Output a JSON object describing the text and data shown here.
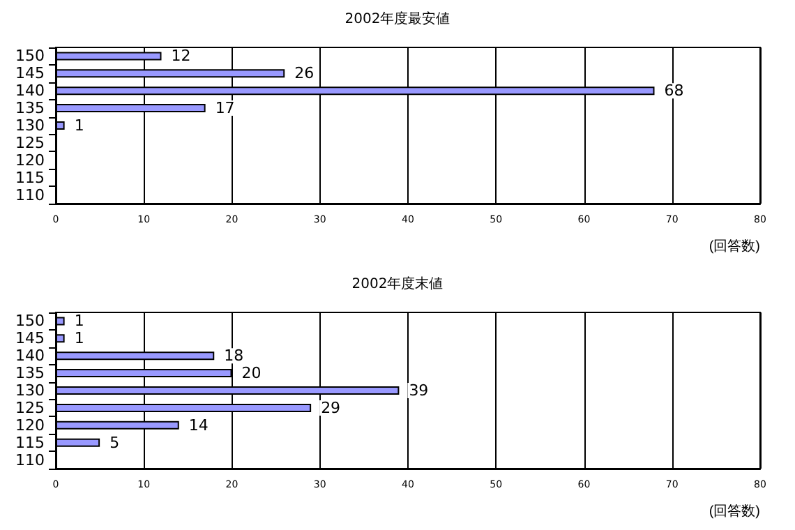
{
  "chart_data": [
    {
      "type": "bar",
      "title": "2002年度最安値",
      "orientation": "horizontal",
      "categories": [
        "150",
        "145",
        "140",
        "135",
        "130",
        "125",
        "120",
        "115",
        "110"
      ],
      "values": [
        12,
        26,
        68,
        17,
        1,
        null,
        null,
        null,
        null
      ],
      "color": "#9999ff",
      "xlim": [
        0,
        80
      ],
      "xticks": [
        0,
        10,
        20,
        30,
        40,
        50,
        60,
        70,
        80
      ],
      "xlabel": "(回答数)",
      "grid": "x",
      "data_labels": true
    },
    {
      "type": "bar",
      "title": "2002年度末値",
      "orientation": "horizontal",
      "categories": [
        "150",
        "145",
        "140",
        "135",
        "130",
        "125",
        "120",
        "115",
        "110"
      ],
      "values": [
        1,
        1,
        18,
        20,
        39,
        29,
        14,
        5,
        null
      ],
      "color": "#9999ff",
      "xlim": [
        0,
        80
      ],
      "xticks": [
        0,
        10,
        20,
        30,
        40,
        50,
        60,
        70,
        80
      ],
      "xlabel": "(回答数)",
      "grid": "x",
      "data_labels": true
    }
  ]
}
